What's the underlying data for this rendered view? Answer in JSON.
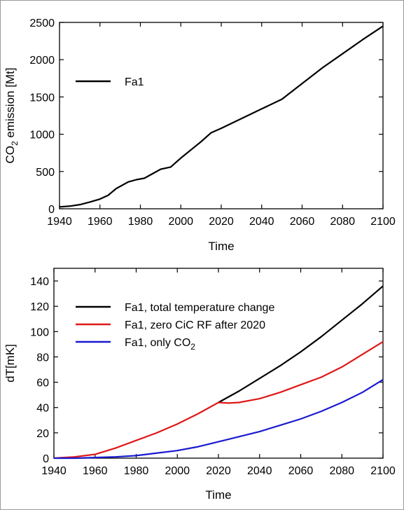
{
  "chart_data": [
    {
      "type": "line",
      "title": "",
      "xlabel": "Time",
      "ylabel_main": "CO",
      "ylabel_sub": "2",
      "ylabel_rest": " emission [Mt]",
      "xlim": [
        1940,
        2100
      ],
      "ylim": [
        0,
        2500
      ],
      "xticks": [
        1940,
        1960,
        1980,
        2000,
        2020,
        2040,
        2060,
        2080,
        2100
      ],
      "yticks": [
        0,
        500,
        1000,
        1500,
        2000,
        2500
      ],
      "grid": false,
      "legend_position": "upper-left",
      "series": [
        {
          "name": "Fa1",
          "color": "#000000",
          "points": [
            [
              1940,
              25
            ],
            [
              1945,
              35
            ],
            [
              1950,
              55
            ],
            [
              1955,
              90
            ],
            [
              1960,
              130
            ],
            [
              1964,
              180
            ],
            [
              1968,
              270
            ],
            [
              1974,
              360
            ],
            [
              1978,
              390
            ],
            [
              1982,
              410
            ],
            [
              1986,
              470
            ],
            [
              1990,
              530
            ],
            [
              1995,
              560
            ],
            [
              2000,
              680
            ],
            [
              2005,
              790
            ],
            [
              2010,
              900
            ],
            [
              2015,
              1020
            ],
            [
              2020,
              1080
            ],
            [
              2030,
              1210
            ],
            [
              2040,
              1340
            ],
            [
              2050,
              1470
            ],
            [
              2060,
              1680
            ],
            [
              2070,
              1890
            ],
            [
              2080,
              2080
            ],
            [
              2090,
              2270
            ],
            [
              2100,
              2450
            ]
          ]
        }
      ]
    },
    {
      "type": "line",
      "title": "",
      "xlabel": "Time",
      "ylabel": "dT[mK]",
      "xlim": [
        1940,
        2100
      ],
      "ylim": [
        0,
        150
      ],
      "xticks": [
        1940,
        1960,
        1980,
        2000,
        2020,
        2040,
        2060,
        2080,
        2100
      ],
      "yticks": [
        0,
        20,
        40,
        60,
        80,
        100,
        120,
        140
      ],
      "grid": false,
      "legend_position": "upper-left",
      "series": [
        {
          "name": "Fa1, total temperature change",
          "color": "#000000",
          "points": [
            [
              2020,
              44
            ],
            [
              2030,
              53
            ],
            [
              2040,
              63
            ],
            [
              2050,
              73
            ],
            [
              2060,
              84
            ],
            [
              2070,
              96
            ],
            [
              2080,
              109
            ],
            [
              2090,
              122
            ],
            [
              2100,
              136
            ]
          ]
        },
        {
          "name": "Fa1, zero CiC RF after 2020",
          "color": "#e01818",
          "points": [
            [
              1940,
              0
            ],
            [
              1950,
              1
            ],
            [
              1960,
              3
            ],
            [
              1970,
              8
            ],
            [
              1980,
              14
            ],
            [
              1990,
              20
            ],
            [
              2000,
              27
            ],
            [
              2010,
              35
            ],
            [
              2020,
              44
            ],
            [
              2025,
              43.5
            ],
            [
              2030,
              44
            ],
            [
              2040,
              47
            ],
            [
              2050,
              52
            ],
            [
              2060,
              58
            ],
            [
              2070,
              64
            ],
            [
              2080,
              72
            ],
            [
              2090,
              82
            ],
            [
              2100,
              92
            ]
          ]
        },
        {
          "name_main": "Fa1, only CO",
          "name_sub": "2",
          "color": "#1a1ad0",
          "points": [
            [
              1940,
              0
            ],
            [
              1950,
              0
            ],
            [
              1960,
              0.5
            ],
            [
              1970,
              1
            ],
            [
              1980,
              2
            ],
            [
              1990,
              4
            ],
            [
              2000,
              6
            ],
            [
              2010,
              9
            ],
            [
              2020,
              13
            ],
            [
              2030,
              17
            ],
            [
              2040,
              21
            ],
            [
              2050,
              26
            ],
            [
              2060,
              31
            ],
            [
              2070,
              37
            ],
            [
              2080,
              44
            ],
            [
              2090,
              52
            ],
            [
              2100,
              62
            ]
          ]
        }
      ]
    }
  ]
}
